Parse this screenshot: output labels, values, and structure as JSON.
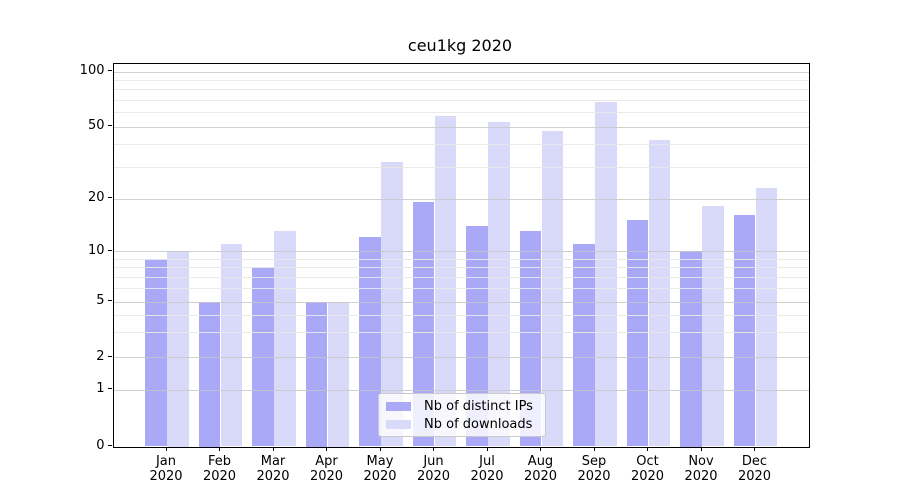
{
  "chart_data": {
    "type": "bar",
    "title": "ceu1kg 2020",
    "categories": [
      "Jan",
      "Feb",
      "Mar",
      "Apr",
      "May",
      "Jun",
      "Jul",
      "Aug",
      "Sep",
      "Oct",
      "Nov",
      "Dec"
    ],
    "x_year": "2020",
    "series": [
      {
        "name": "Nb of distinct IPs",
        "color": "#a9a9f8",
        "values": [
          9,
          5,
          8,
          5,
          12,
          19,
          14,
          13,
          11,
          15,
          10,
          16
        ]
      },
      {
        "name": "Nb of downloads",
        "color": "#d9d9fa",
        "values": [
          10,
          11,
          13,
          5,
          32,
          57,
          53,
          47,
          68,
          42,
          18,
          23
        ]
      }
    ],
    "yscale": "symlog",
    "ylim": [
      0,
      112
    ],
    "y_major_ticks": [
      0,
      1,
      2,
      5,
      10,
      20,
      50,
      100
    ],
    "y_minor_ticks": [
      3,
      4,
      6,
      7,
      8,
      9,
      30,
      40,
      60,
      70,
      80,
      90
    ],
    "grid": true,
    "legend_position": "lower-center"
  }
}
